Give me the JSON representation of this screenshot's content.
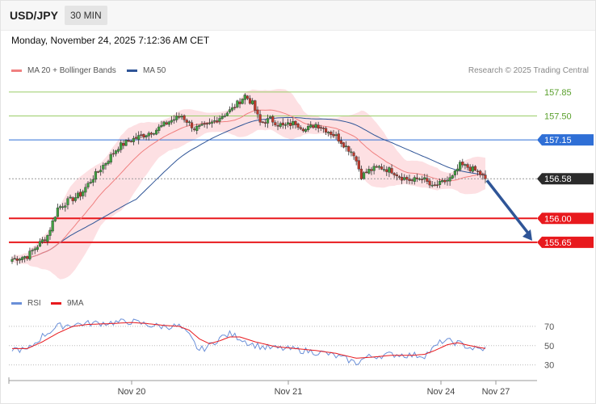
{
  "header": {
    "symbol": "USD/JPY",
    "interval": "30 MIN",
    "datetime": "Monday, November 24, 2025 7:12:36 AM CET",
    "credit": "Research © 2025 Trading Central"
  },
  "legend": {
    "ma20": "MA 20 + Bollinger Bands",
    "ma50": "MA 50",
    "rsi": "RSI",
    "ma9": "9MA"
  },
  "colors": {
    "ma20": "#f08080",
    "bollinger_fill": "#fde0e3",
    "ma50": "#2f5597",
    "resistance_green": "#9acd68",
    "pivot_blue": "#2f6fd6",
    "support_red": "#e8191d",
    "candle_up": "#3fa03f",
    "candle_down": "#c0392b",
    "arrow": "#2f5597",
    "rsi_line": "#6a8fd8",
    "rsi_ma": "#e8191d"
  },
  "chart_data": {
    "type": "candlestick",
    "title": "USD/JPY",
    "interval": "30 MIN",
    "x_tick_labels": [
      "Nov 20",
      "Nov 21",
      "Nov 24",
      "Nov 27"
    ],
    "ylim": [
      154.95,
      158.05
    ],
    "levels": [
      {
        "value": 157.85,
        "label": "157.85",
        "style": "resistance"
      },
      {
        "value": 157.5,
        "label": "157.50",
        "style": "resistance"
      },
      {
        "value": 157.15,
        "label": "157.15",
        "style": "pivot"
      },
      {
        "value": 156.58,
        "label": "156.58",
        "style": "last_price"
      },
      {
        "value": 156.0,
        "label": "156.00",
        "style": "support"
      },
      {
        "value": 155.65,
        "label": "155.65",
        "style": "support"
      }
    ],
    "last_price": 156.58,
    "projection": {
      "from": 156.58,
      "to": 155.65,
      "direction": "down"
    },
    "close_anchors": [
      [
        0,
        155.4
      ],
      [
        6,
        155.45
      ],
      [
        10,
        155.6
      ],
      [
        14,
        155.75
      ],
      [
        18,
        156.15
      ],
      [
        22,
        156.25
      ],
      [
        27,
        156.35
      ],
      [
        32,
        156.6
      ],
      [
        37,
        156.82
      ],
      [
        42,
        157.05
      ],
      [
        47,
        157.15
      ],
      [
        52,
        157.22
      ],
      [
        57,
        157.3
      ],
      [
        62,
        157.42
      ],
      [
        67,
        157.5
      ],
      [
        72,
        157.32
      ],
      [
        77,
        157.35
      ],
      [
        82,
        157.48
      ],
      [
        87,
        157.6
      ],
      [
        92,
        157.8
      ],
      [
        95,
        157.68
      ],
      [
        98,
        157.4
      ],
      [
        102,
        157.45
      ],
      [
        107,
        157.35
      ],
      [
        112,
        157.4
      ],
      [
        116,
        157.3
      ],
      [
        120,
        157.38
      ],
      [
        124,
        157.3
      ],
      [
        128,
        157.2
      ],
      [
        132,
        157.05
      ],
      [
        135,
        156.95
      ],
      [
        138,
        156.62
      ],
      [
        141,
        156.7
      ],
      [
        145,
        156.75
      ],
      [
        150,
        156.7
      ],
      [
        154,
        156.6
      ],
      [
        158,
        156.55
      ],
      [
        162,
        156.6
      ],
      [
        166,
        156.45
      ],
      [
        170,
        156.52
      ],
      [
        174,
        156.6
      ],
      [
        177,
        156.78
      ],
      [
        180,
        156.75
      ],
      [
        184,
        156.68
      ],
      [
        187,
        156.58
      ]
    ],
    "rsi": {
      "levels": [
        70,
        50,
        30
      ],
      "ylim": [
        18,
        85
      ],
      "anchors": [
        [
          0,
          47
        ],
        [
          6,
          45
        ],
        [
          12,
          60
        ],
        [
          18,
          70
        ],
        [
          24,
          72
        ],
        [
          30,
          73
        ],
        [
          40,
          74
        ],
        [
          47,
          75
        ],
        [
          53,
          72
        ],
        [
          58,
          70
        ],
        [
          66,
          70
        ],
        [
          70,
          60
        ],
        [
          74,
          45
        ],
        [
          78,
          50
        ],
        [
          82,
          58
        ],
        [
          86,
          62
        ],
        [
          90,
          58
        ],
        [
          94,
          52
        ],
        [
          100,
          48
        ],
        [
          106,
          47
        ],
        [
          112,
          46
        ],
        [
          118,
          44
        ],
        [
          124,
          42
        ],
        [
          128,
          39
        ],
        [
          132,
          36
        ],
        [
          136,
          32
        ],
        [
          140,
          38
        ],
        [
          146,
          40
        ],
        [
          152,
          41
        ],
        [
          158,
          40
        ],
        [
          163,
          40
        ],
        [
          167,
          48
        ],
        [
          170,
          55
        ],
        [
          174,
          54
        ],
        [
          177,
          52
        ],
        [
          181,
          48
        ],
        [
          184,
          46
        ],
        [
          187,
          47
        ]
      ],
      "ma_anchors": [
        [
          0,
          47
        ],
        [
          6,
          47
        ],
        [
          12,
          54
        ],
        [
          18,
          63
        ],
        [
          24,
          70
        ],
        [
          30,
          72
        ],
        [
          40,
          73
        ],
        [
          47,
          74
        ],
        [
          53,
          73
        ],
        [
          60,
          71
        ],
        [
          66,
          70
        ],
        [
          70,
          66
        ],
        [
          74,
          57
        ],
        [
          78,
          52
        ],
        [
          82,
          55
        ],
        [
          86,
          59
        ],
        [
          90,
          59
        ],
        [
          96,
          54
        ],
        [
          104,
          49
        ],
        [
          112,
          47
        ],
        [
          120,
          45
        ],
        [
          128,
          42
        ],
        [
          136,
          37
        ],
        [
          142,
          38
        ],
        [
          150,
          40
        ],
        [
          158,
          40
        ],
        [
          163,
          41
        ],
        [
          167,
          45
        ],
        [
          172,
          51
        ],
        [
          176,
          53
        ],
        [
          181,
          50
        ],
        [
          187,
          47
        ]
      ]
    }
  }
}
